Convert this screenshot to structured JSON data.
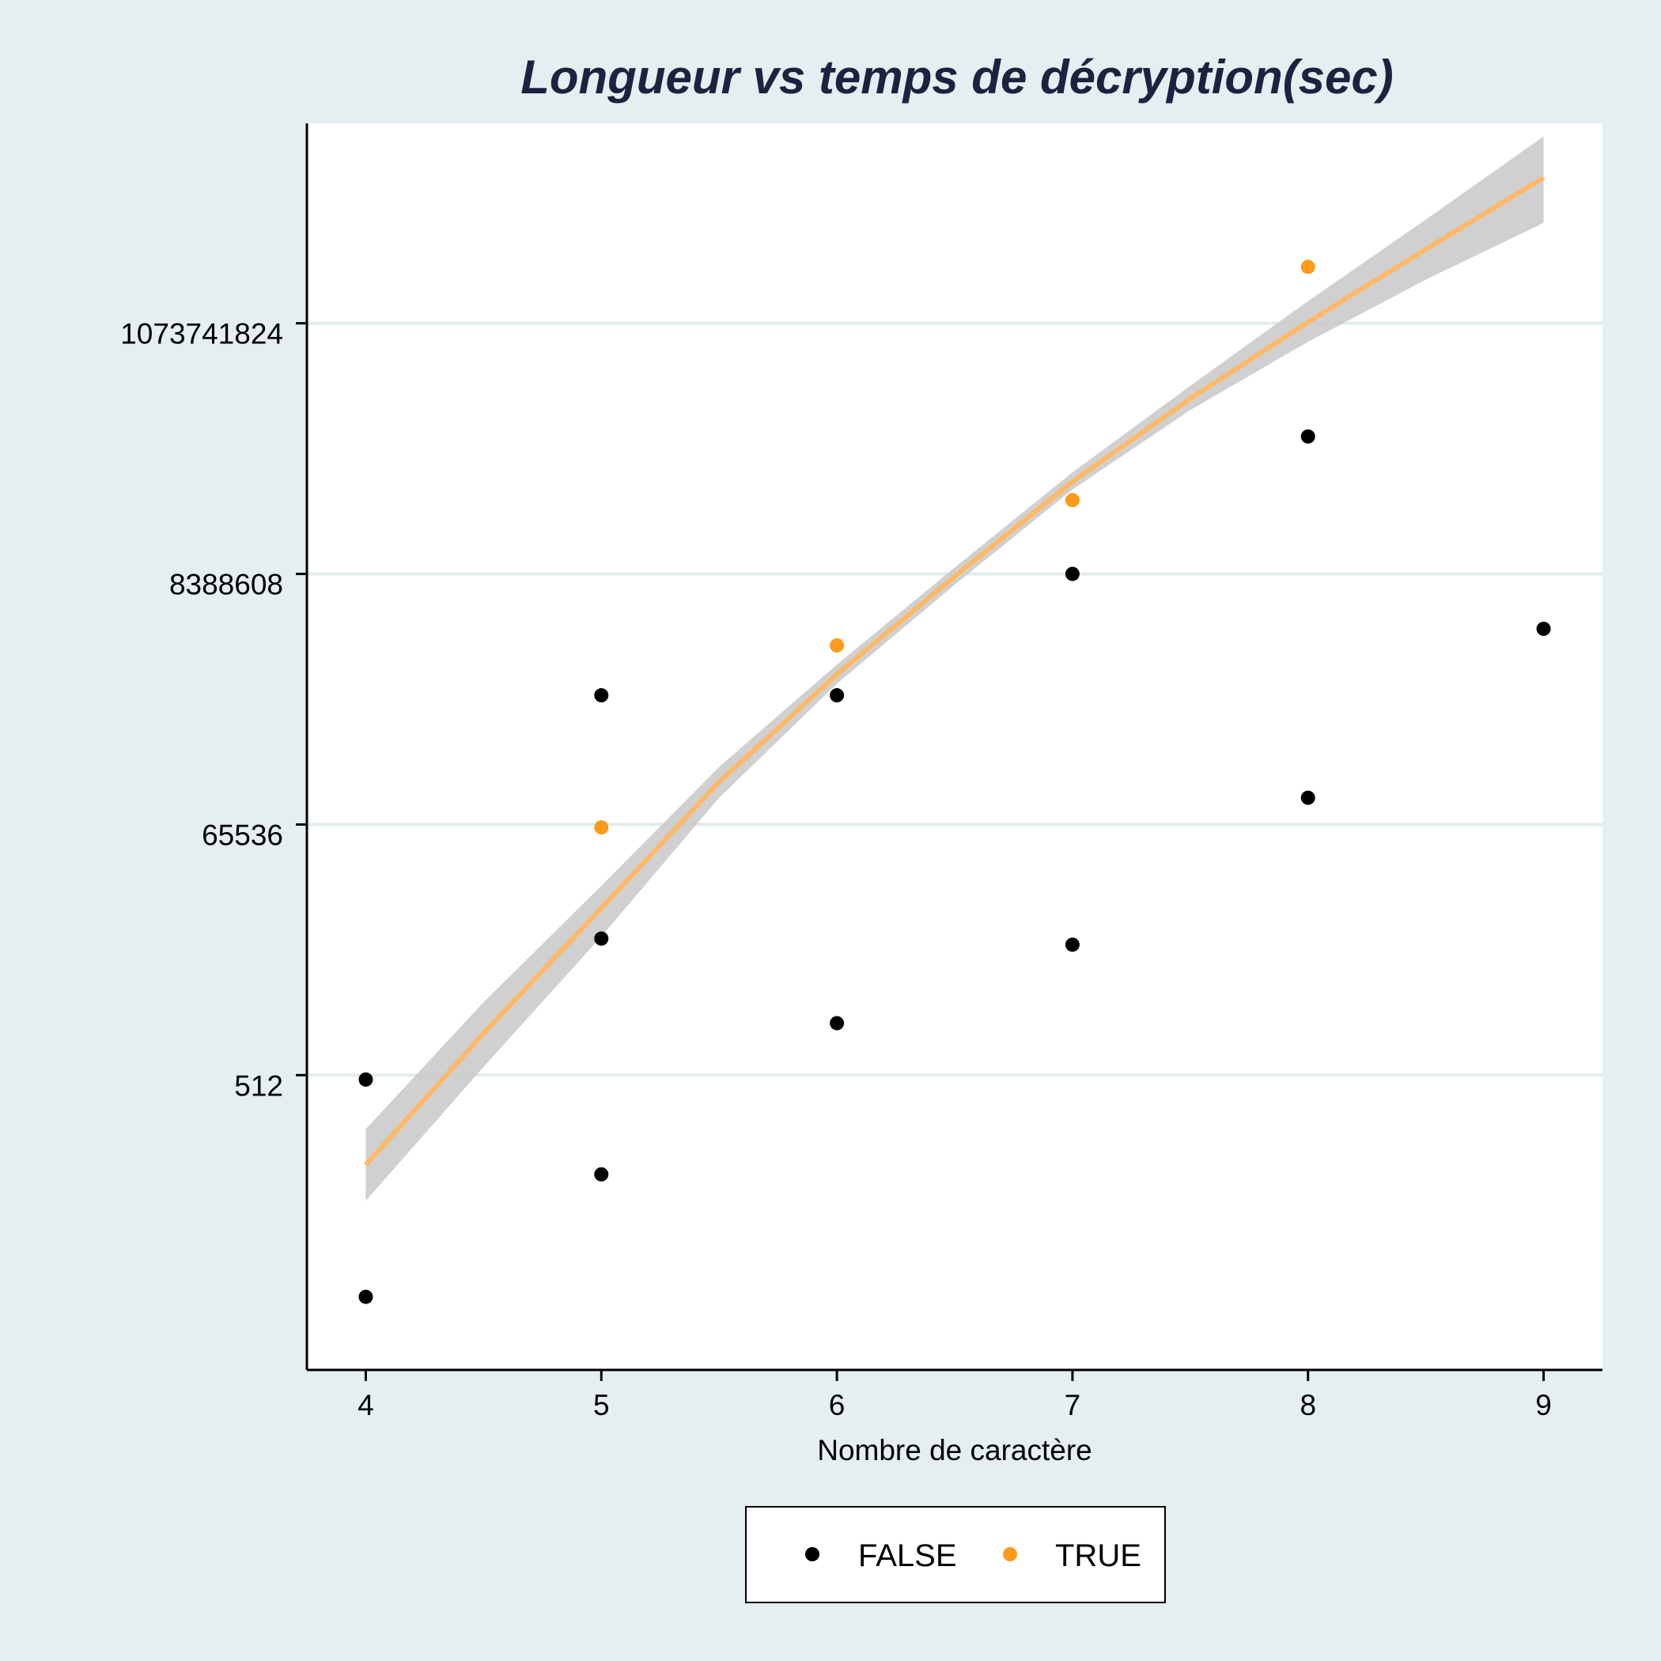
{
  "chart_data": {
    "type": "scatter",
    "title": "Longueur vs temps de décryption(sec)",
    "xlabel": "Nombre de caractère",
    "ylabel": "",
    "y_scale": "log2",
    "xlim": [
      3.75,
      9.25
    ],
    "ylim": [
      1.7,
      51500000000
    ],
    "x_ticks": [
      4,
      5,
      6,
      7,
      8,
      9
    ],
    "y_ticks": [
      {
        "value": 512,
        "label": "512"
      },
      {
        "value": 65536,
        "label": "65536"
      },
      {
        "value": 8388608,
        "label": "8388608"
      },
      {
        "value": 1073741824,
        "label": "1073741824"
      }
    ],
    "grid": "horizontal",
    "legend": {
      "position": "bottom",
      "entries": [
        "FALSE",
        "TRUE"
      ]
    },
    "series": [
      {
        "name": "FALSE",
        "color": "#000000",
        "points": [
          {
            "x": 4,
            "y": 7
          },
          {
            "x": 4,
            "y": 470
          },
          {
            "x": 5,
            "y": 75
          },
          {
            "x": 5,
            "y": 7200
          },
          {
            "x": 5,
            "y": 800000
          },
          {
            "x": 6,
            "y": 1400
          },
          {
            "x": 6,
            "y": 800000
          },
          {
            "x": 7,
            "y": 6400
          },
          {
            "x": 7,
            "y": 8388608
          },
          {
            "x": 8,
            "y": 110000
          },
          {
            "x": 8,
            "y": 120000000
          },
          {
            "x": 9,
            "y": 2900000
          }
        ]
      },
      {
        "name": "TRUE",
        "color": "#ff9a1a",
        "points": [
          {
            "x": 5,
            "y": 62000
          },
          {
            "x": 6,
            "y": 2100000
          },
          {
            "x": 7,
            "y": 35000000
          },
          {
            "x": 8,
            "y": 3200000000
          }
        ]
      }
    ],
    "trend": {
      "type": "smooth",
      "color": "#ffb866",
      "band_color": "#c8c8c8",
      "line": [
        {
          "x": 4,
          "y": 90
        },
        {
          "x": 4.5,
          "y": 1150
        },
        {
          "x": 5,
          "y": 13000
        },
        {
          "x": 5.5,
          "y": 150000
        },
        {
          "x": 6,
          "y": 1200000
        },
        {
          "x": 6.5,
          "y": 8000000
        },
        {
          "x": 7,
          "y": 50000000
        },
        {
          "x": 7.5,
          "y": 250000000
        },
        {
          "x": 8,
          "y": 1100000000
        },
        {
          "x": 8.5,
          "y": 4500000000
        },
        {
          "x": 9,
          "y": 18000000000
        }
      ],
      "lower": [
        {
          "x": 4,
          "y": 45
        },
        {
          "x": 4.5,
          "y": 600
        },
        {
          "x": 5,
          "y": 7500
        },
        {
          "x": 5.5,
          "y": 110000
        },
        {
          "x": 6,
          "y": 1000000
        },
        {
          "x": 6.5,
          "y": 6800000
        },
        {
          "x": 7,
          "y": 43000000
        },
        {
          "x": 7.5,
          "y": 200000000
        },
        {
          "x": 8,
          "y": 750000000
        },
        {
          "x": 8.5,
          "y": 2500000000
        },
        {
          "x": 9,
          "y": 7500000000
        }
      ],
      "upper": [
        {
          "x": 4,
          "y": 180
        },
        {
          "x": 4.5,
          "y": 2100
        },
        {
          "x": 5,
          "y": 20000
        },
        {
          "x": 5.5,
          "y": 200000
        },
        {
          "x": 6,
          "y": 1450000
        },
        {
          "x": 6.5,
          "y": 9500000
        },
        {
          "x": 7,
          "y": 60000000
        },
        {
          "x": 7.5,
          "y": 320000000
        },
        {
          "x": 8,
          "y": 1650000000
        },
        {
          "x": 8.5,
          "y": 8000000000
        },
        {
          "x": 9,
          "y": 40000000000
        }
      ]
    }
  }
}
